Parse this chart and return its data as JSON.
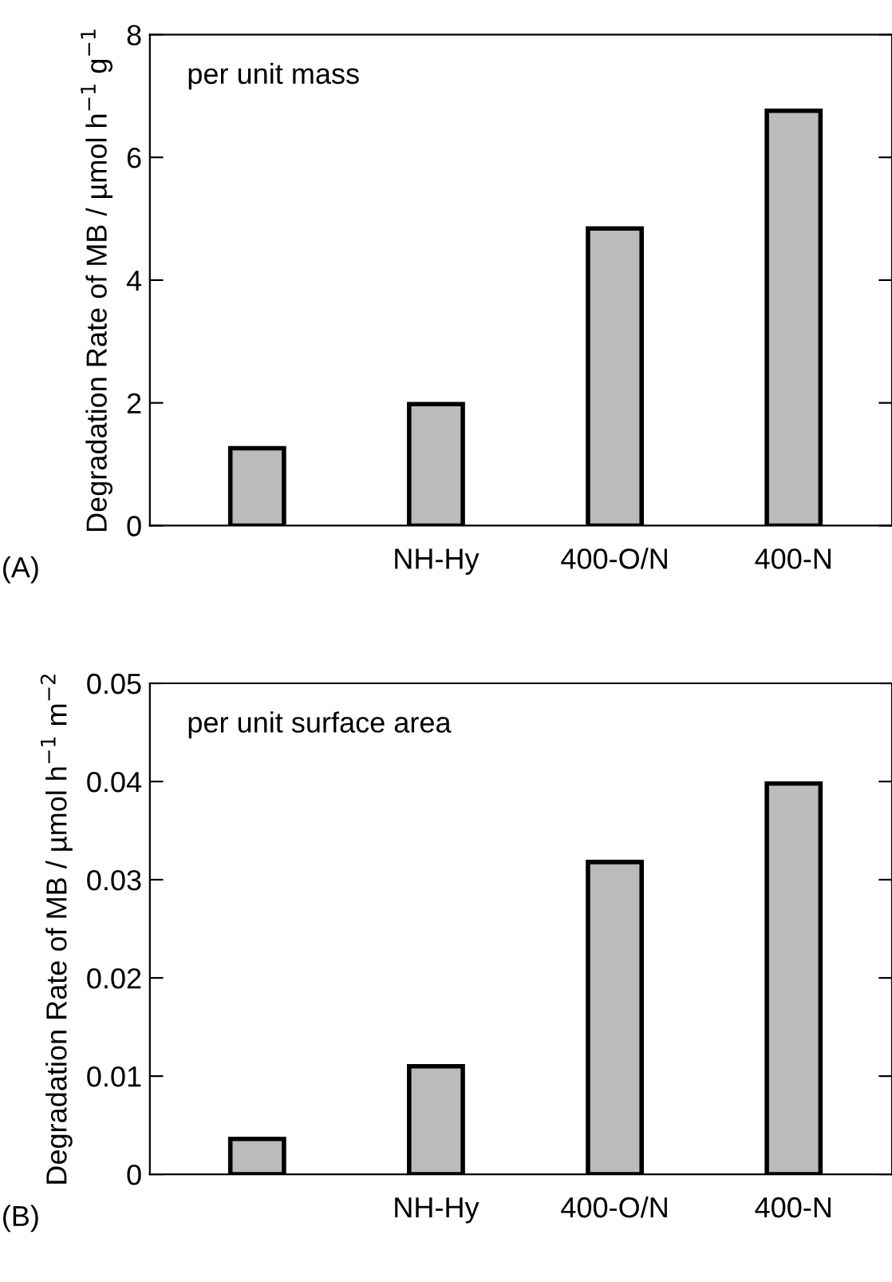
{
  "chart_data": [
    {
      "type": "bar",
      "ylabel": "Degradation Rate of MB / µmol h$^{−1}$ g$^{−1}$",
      "annotations": [
        "per unit mass",
        "(A)"
      ],
      "categories": [
        null,
        "NH-Hy",
        "400-O/N",
        "400-N"
      ],
      "values": [
        1.26,
        1.98,
        4.84,
        6.76
      ],
      "color": "#bbbbbb",
      "ylim": [
        0,
        8
      ],
      "yticks": [
        0,
        2,
        4,
        6,
        8
      ],
      "grid": false
    },
    {
      "type": "bar",
      "ylabel": "Degradation Rate of MB / µmol h$^{−1}$ m$^{−2}$",
      "annotations": [
        "per unit surface area",
        "(B)"
      ],
      "categories": [
        null,
        "NH-Hy",
        "400-O/N",
        "400-N"
      ],
      "values": [
        0.0036,
        0.011,
        0.0318,
        0.0398
      ],
      "color": "#bbbbbb",
      "ylim": [
        0,
        0.05
      ],
      "yticks": [
        0,
        0.01,
        0.02,
        0.03,
        0.04,
        0.05
      ],
      "grid": false
    }
  ]
}
